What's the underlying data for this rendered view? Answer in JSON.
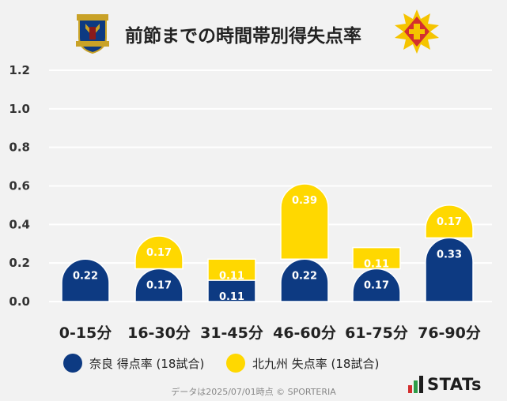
{
  "title": "前節までの時間帯別得失点率",
  "footer": "データは2025/07/01時点 © SPORTERIA",
  "stats_brand": "STATs",
  "colors": {
    "home": "#0d3a82",
    "away": "#ffd800",
    "grid": "#ffffff",
    "background": "#f2f2f2"
  },
  "icons": {
    "left_logo": "nara-club-crest-icon",
    "right_logo": "kitakyushu-crest-icon",
    "stats_logo": "stats-bars-icon"
  },
  "chart_data": {
    "type": "bar",
    "stacked": true,
    "categories": [
      "0-15分",
      "16-30分",
      "31-45分",
      "46-60分",
      "61-75分",
      "76-90分"
    ],
    "series": [
      {
        "name": "奈良 得点率 (18試合)",
        "color": "#0d3a82",
        "values": [
          0.22,
          0.17,
          0.11,
          0.22,
          0.17,
          0.33
        ]
      },
      {
        "name": "北九州 失点率 (18試合)",
        "color": "#ffd800",
        "values": [
          0,
          0.17,
          0.11,
          0.39,
          0.11,
          0.17
        ]
      }
    ],
    "value_labels": [
      [
        "0.22",
        "0.17",
        "0.11",
        "0.22",
        "0.17",
        "0.33"
      ],
      [
        "",
        "0.17",
        "0.11",
        "0.39",
        "0.11",
        "0.17"
      ]
    ],
    "yticks": [
      "0.0",
      "0.2",
      "0.4",
      "0.6",
      "0.8",
      "1.0",
      "1.2"
    ],
    "ylim": [
      0,
      1.2
    ],
    "grid": true,
    "legend": "bottom"
  }
}
